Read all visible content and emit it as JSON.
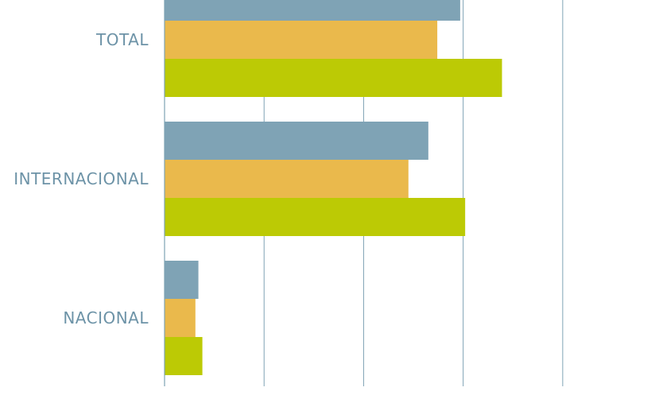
{
  "chart_data": {
    "type": "bar",
    "orientation": "horizontal",
    "categories": [
      "TOTAL",
      "INTERNACIONAL",
      "NACIONAL"
    ],
    "series": [
      {
        "color": "#7fa3b5",
        "values": [
          2.97,
          2.65,
          0.34
        ]
      },
      {
        "color": "#eab94c",
        "values": [
          2.74,
          2.45,
          0.31
        ]
      },
      {
        "color": "#bcca05",
        "values": [
          3.39,
          3.02,
          0.38
        ]
      }
    ],
    "xlim": [
      0,
      4.6
    ],
    "gridlines": [
      1,
      2,
      3,
      4
    ],
    "grid": true,
    "legend": "none",
    "title": "",
    "xlabel": "",
    "ylabel": "",
    "label_color": "#6d93a7",
    "grid_color": "#7fa3b5"
  }
}
